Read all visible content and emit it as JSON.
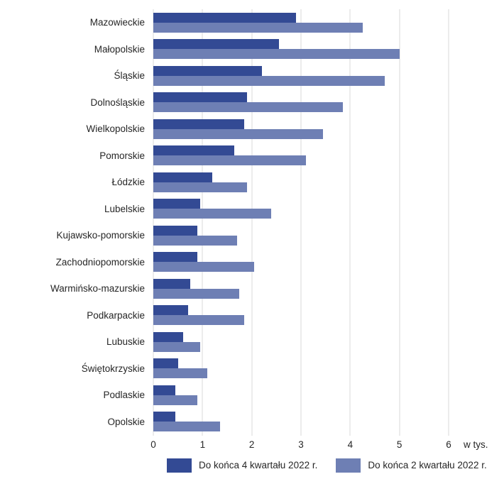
{
  "colors": {
    "background": "#FFFFFF",
    "grid": "#D9D9D9",
    "text": "#262626",
    "series_dark": "#334A94",
    "series_light": "#6E7FB4"
  },
  "chart_data": {
    "type": "bar",
    "orientation": "horizontal",
    "title": "",
    "xlabel": "",
    "ylabel": "",
    "unit_label": "w tys.",
    "xlim": [
      0,
      6
    ],
    "x_ticks": [
      0,
      1,
      2,
      3,
      4,
      5,
      6
    ],
    "grid": "vertical",
    "legend_position": "bottom",
    "categories": [
      "Mazowieckie",
      "Małopolskie",
      "Śląskie",
      "Dolnośląskie",
      "Wielkopolskie",
      "Pomorskie",
      "Łódzkie",
      "Lubelskie",
      "Kujawsko-pomorskie",
      "Zachodniopomorskie",
      "Warmińsko-mazurskie",
      "Podkarpackie",
      "Lubuskie",
      "Świętokrzyskie",
      "Podlaskie",
      "Opolskie"
    ],
    "series": [
      {
        "name": "Do końca 4 kwartału 2022 r.",
        "color": "#334A94",
        "values": [
          2.9,
          2.55,
          2.2,
          1.9,
          1.85,
          1.65,
          1.2,
          0.95,
          0.9,
          0.9,
          0.75,
          0.7,
          0.6,
          0.5,
          0.45,
          0.45
        ]
      },
      {
        "name": "Do końca 2 kwartału 2022 r.",
        "color": "#6E7FB4",
        "values": [
          4.25,
          5.0,
          4.7,
          3.85,
          3.45,
          3.1,
          1.9,
          2.4,
          1.7,
          2.05,
          1.75,
          1.85,
          0.95,
          1.1,
          0.9,
          1.35
        ]
      }
    ]
  }
}
